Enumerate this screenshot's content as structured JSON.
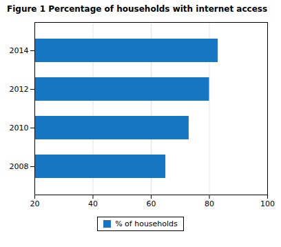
{
  "chart_data": {
    "type": "bar",
    "orientation": "horizontal",
    "title": "Figure 1 Percentage of households with internet access",
    "categories": [
      "2008",
      "2010",
      "2012",
      "2014"
    ],
    "series": [
      {
        "name": "% of households",
        "color": "#1777C4",
        "values": [
          65,
          73,
          80,
          83
        ]
      }
    ],
    "xlim": [
      20,
      100
    ],
    "xticks": [
      20,
      40,
      60,
      80,
      100
    ],
    "grid": true,
    "legend": "bottom"
  }
}
